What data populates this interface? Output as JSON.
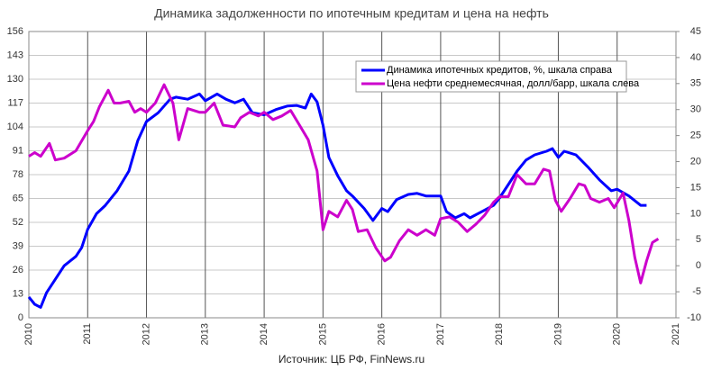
{
  "chart_data": {
    "type": "line",
    "title": "Динамика задолженности по ипотечным кредитам и цена на нефть",
    "source": "Источник: ЦБ РФ, FinNews.ru",
    "xlim": [
      2010,
      2021
    ],
    "xticks": [
      2010,
      2011,
      2012,
      2013,
      2014,
      2015,
      2016,
      2017,
      2018,
      2019,
      2020,
      2021
    ],
    "ylim": [
      0,
      156
    ],
    "yticks": [
      0,
      13,
      26,
      39,
      52,
      65,
      78,
      91,
      104,
      117,
      130,
      143,
      156
    ],
    "y2lim": [
      -10,
      45
    ],
    "y2ticks": [
      -10,
      -5,
      0,
      5,
      10,
      15,
      20,
      25,
      30,
      35,
      40,
      45
    ],
    "grid": true,
    "legend": "upper right",
    "series": [
      {
        "name": "Динамика ипотечных кредитов, %, шкала справа",
        "color": "#0000ff",
        "axis": "y2",
        "x": [
          2010.0,
          2010.1,
          2010.2,
          2010.3,
          2010.45,
          2010.6,
          2010.8,
          2010.9,
          2011.0,
          2011.15,
          2011.3,
          2011.5,
          2011.7,
          2011.85,
          2012.0,
          2012.2,
          2012.4,
          2012.5,
          2012.7,
          2012.9,
          2013.0,
          2013.2,
          2013.35,
          2013.5,
          2013.65,
          2013.8,
          2014.0,
          2014.2,
          2014.4,
          2014.55,
          2014.7,
          2014.8,
          2014.9,
          2015.0,
          2015.1,
          2015.25,
          2015.4,
          2015.5,
          2015.7,
          2015.85,
          2016.0,
          2016.1,
          2016.25,
          2016.45,
          2016.6,
          2016.75,
          2017.0,
          2017.1,
          2017.25,
          2017.4,
          2017.5,
          2017.7,
          2017.9,
          2018.0,
          2018.15,
          2018.3,
          2018.45,
          2018.6,
          2018.8,
          2018.9,
          2019.0,
          2019.1,
          2019.3,
          2019.5,
          2019.7,
          2019.9,
          2020.0,
          2020.2,
          2020.4,
          2020.5
        ],
        "values": [
          -6,
          -7.4,
          -8,
          -5.2,
          -2.6,
          0,
          1.8,
          3.5,
          7,
          10,
          11.6,
          14.4,
          18.2,
          24,
          27.7,
          29.4,
          32,
          32.4,
          32,
          33,
          31.7,
          33,
          32,
          31.3,
          32,
          29.4,
          29,
          30,
          30.7,
          30.8,
          30.3,
          33,
          31.5,
          27,
          20.8,
          17.3,
          14.4,
          13.4,
          11,
          8.7,
          11,
          10.4,
          12.7,
          13.7,
          13.9,
          13.4,
          13.4,
          10.4,
          9.2,
          10,
          9.2,
          10.4,
          11.6,
          13,
          15.6,
          18.2,
          20.3,
          21.3,
          22,
          22.5,
          20.8,
          22,
          21.3,
          19,
          16.5,
          14.4,
          14.7,
          13.4,
          11.6,
          11.6
        ]
      },
      {
        "name": "Цена нефти среднемесячная, долл/барр, шкала слева",
        "color": "#cc00cc",
        "axis": "y",
        "x": [
          2010.0,
          2010.1,
          2010.2,
          2010.35,
          2010.45,
          2010.6,
          2010.8,
          2011.0,
          2011.1,
          2011.2,
          2011.35,
          2011.45,
          2011.55,
          2011.7,
          2011.8,
          2011.9,
          2012.0,
          2012.15,
          2012.3,
          2012.45,
          2012.55,
          2012.7,
          2012.9,
          2013.0,
          2013.15,
          2013.3,
          2013.5,
          2013.6,
          2013.75,
          2013.9,
          2014.0,
          2014.15,
          2014.3,
          2014.45,
          2014.6,
          2014.75,
          2014.9,
          2015.0,
          2015.1,
          2015.25,
          2015.4,
          2015.5,
          2015.6,
          2015.75,
          2015.9,
          2016.05,
          2016.15,
          2016.3,
          2016.45,
          2016.6,
          2016.75,
          2016.9,
          2017.0,
          2017.15,
          2017.3,
          2017.45,
          2017.6,
          2017.75,
          2017.9,
          2018.0,
          2018.15,
          2018.3,
          2018.45,
          2018.6,
          2018.75,
          2018.85,
          2018.95,
          2019.05,
          2019.2,
          2019.35,
          2019.45,
          2019.55,
          2019.7,
          2019.85,
          2019.95,
          2020.1,
          2020.2,
          2020.3,
          2020.4,
          2020.5,
          2020.6,
          2020.7
        ],
        "values": [
          88,
          90,
          88,
          95,
          86,
          87,
          91,
          102,
          107,
          115,
          124,
          117,
          117,
          118,
          112,
          114,
          112,
          117,
          127,
          117,
          97,
          114,
          112,
          112,
          117,
          105,
          104,
          109,
          112,
          110,
          112,
          108,
          110,
          113,
          105,
          97,
          80,
          48,
          58,
          55,
          64,
          59,
          47,
          48,
          38,
          31,
          33,
          42,
          48,
          45,
          48,
          45,
          54,
          55,
          52,
          47,
          51,
          56,
          63,
          66,
          66,
          78,
          73,
          73,
          81,
          80,
          64,
          58,
          65,
          73,
          72,
          65,
          63,
          65,
          60,
          68,
          53,
          33,
          19,
          31,
          41,
          43
        ]
      }
    ]
  }
}
